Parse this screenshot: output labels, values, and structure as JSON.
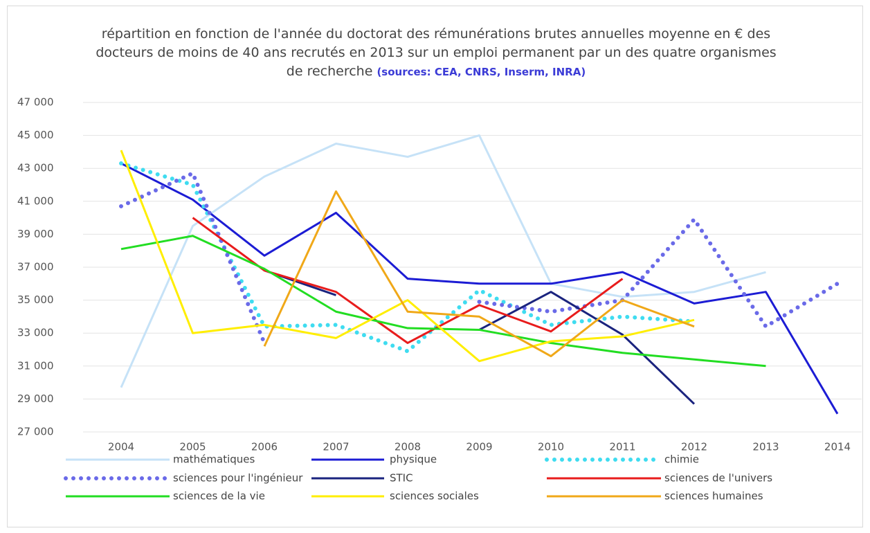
{
  "chart_data": {
    "type": "line",
    "title": "répartition en fonction de l'année du doctorat des rémunérations brutes annuelles moyenne en € des docteurs de moins de 40 ans recrutés en 2013 sur un emploi permanent par un des quatre organismes de recherche",
    "subtitle": "(sources: CEA, CNRS, Inserm, INRA)",
    "categories": [
      "2004",
      "2005",
      "2006",
      "2007",
      "2008",
      "2009",
      "2010",
      "2011",
      "2012",
      "2013",
      "2014"
    ],
    "ylim": [
      27000,
      47000
    ],
    "yticks": [
      {
        "value": 27000,
        "label": "27 000"
      },
      {
        "value": 29000,
        "label": "29 000"
      },
      {
        "value": 31000,
        "label": "31 000"
      },
      {
        "value": 33000,
        "label": "33 000"
      },
      {
        "value": 35000,
        "label": "35 000"
      },
      {
        "value": 37000,
        "label": "37 000"
      },
      {
        "value": 39000,
        "label": "39 000"
      },
      {
        "value": 41000,
        "label": "41 000"
      },
      {
        "value": 43000,
        "label": "43 000"
      },
      {
        "value": 45000,
        "label": "45 000"
      },
      {
        "value": 47000,
        "label": "47 000"
      }
    ],
    "grid": true,
    "legend": "bottom",
    "series": [
      {
        "name": "mathématiques",
        "color": "#c6e2f7",
        "style": "solid",
        "values": [
          29700,
          39500,
          42500,
          44500,
          43700,
          45000,
          36000,
          35200,
          35500,
          36700,
          null
        ]
      },
      {
        "name": "physique",
        "color": "#1c1cd4",
        "style": "solid",
        "values": [
          43300,
          41100,
          37700,
          40300,
          36300,
          36000,
          36000,
          36700,
          34800,
          35500,
          28100
        ]
      },
      {
        "name": "chimie",
        "color": "#3fdcf0",
        "style": "dotted",
        "values": [
          43300,
          42000,
          33400,
          33500,
          31900,
          35600,
          33500,
          34000,
          33700,
          null,
          null
        ]
      },
      {
        "name": "sciences pour l'ingénieur",
        "color": "#6a6ae8",
        "style": "dotted",
        "values": [
          40700,
          42700,
          32400,
          null,
          null,
          34900,
          34300,
          35000,
          39900,
          33400,
          36000
        ]
      },
      {
        "name": "STIC",
        "color": "#1a237e",
        "style": "solid",
        "values": [
          null,
          null,
          36800,
          35300,
          null,
          33200,
          35500,
          32900,
          28700,
          null,
          null
        ]
      },
      {
        "name": "sciences de l'univers",
        "color": "#e81c1c",
        "style": "solid",
        "values": [
          null,
          40000,
          36800,
          35500,
          32400,
          34700,
          33100,
          36300,
          null,
          null,
          null
        ]
      },
      {
        "name": "sciences de la vie",
        "color": "#22dd22",
        "style": "solid",
        "values": [
          38100,
          38900,
          36900,
          34300,
          33300,
          33200,
          32400,
          31800,
          31400,
          31000,
          null
        ]
      },
      {
        "name": "sciences sociales",
        "color": "#ffee00",
        "style": "solid",
        "values": [
          44100,
          33000,
          33500,
          32700,
          35000,
          31300,
          32500,
          32800,
          33800,
          null,
          null
        ]
      },
      {
        "name": "sciences humaines",
        "color": "#f0a818",
        "style": "solid",
        "values": [
          null,
          null,
          32200,
          41600,
          34300,
          34000,
          31600,
          35000,
          33400,
          null,
          null
        ]
      }
    ]
  }
}
